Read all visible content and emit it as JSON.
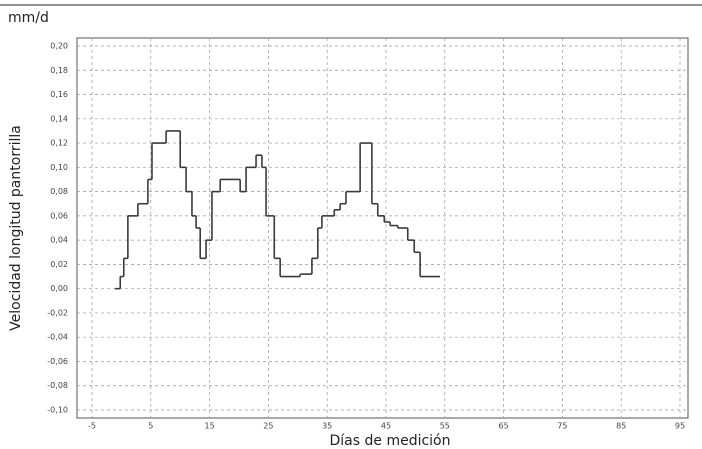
{
  "chart_data": {
    "type": "line",
    "step": "post",
    "title": "mm/d",
    "ylabel": "Velocidad longitud pantorrilla",
    "xlabel": "Días de medición",
    "xlim": [
      -5,
      95
    ],
    "ylim": [
      -0.1,
      0.2
    ],
    "xticks": [
      -5,
      5,
      15,
      25,
      35,
      45,
      55,
      65,
      75,
      85,
      95
    ],
    "yticks": [
      {
        "value": -0.1,
        "label": "-0,10"
      },
      {
        "value": -0.08,
        "label": "-0,08"
      },
      {
        "value": -0.06,
        "label": "-0,06"
      },
      {
        "value": -0.04,
        "label": "-0,04"
      },
      {
        "value": -0.02,
        "label": "-0,02"
      },
      {
        "value": 0,
        "label": "0,00"
      },
      {
        "value": 0.02,
        "label": "0,02"
      },
      {
        "value": 0.04,
        "label": "0,04"
      },
      {
        "value": 0.06,
        "label": "0,06"
      },
      {
        "value": 0.08,
        "label": "0,08"
      },
      {
        "value": 0.1,
        "label": "0,10"
      },
      {
        "value": 0.12,
        "label": "0,12"
      },
      {
        "value": 0.14,
        "label": "0,14"
      },
      {
        "value": 0.16,
        "label": "0,16"
      },
      {
        "value": 0.18,
        "label": "0,18"
      },
      {
        "value": 0.2,
        "label": "0,20"
      }
    ],
    "grid": true,
    "x": [
      -1.1,
      -0.2,
      0.4,
      1.1,
      2.8,
      4.5,
      5.2,
      7.6,
      10,
      11,
      12,
      12.7,
      13.4,
      14.4,
      15.4,
      16.8,
      20.2,
      21.2,
      22.9,
      23.9,
      24.6,
      26,
      27,
      30.4,
      32.4,
      33.4,
      34.1,
      36.2,
      37.2,
      38.2,
      40.6,
      42.6,
      43.6,
      44.7,
      45.7,
      47,
      48.7,
      49.8,
      50.8,
      54.2
    ],
    "series": [
      {
        "color": "#3a3a3a",
        "values": [
          0,
          0.01,
          0.025,
          0.06,
          0.07,
          0.09,
          0.12,
          0.13,
          0.1,
          0.08,
          0.06,
          0.05,
          0.025,
          0.04,
          0.08,
          0.09,
          0.08,
          0.1,
          0.11,
          0.1,
          0.06,
          0.025,
          0.01,
          0.012,
          0.025,
          0.05,
          0.06,
          0.065,
          0.07,
          0.08,
          0.12,
          0.07,
          0.06,
          0.055,
          0.052,
          0.05,
          0.04,
          0.03,
          0.01,
          0.01
        ]
      }
    ]
  }
}
